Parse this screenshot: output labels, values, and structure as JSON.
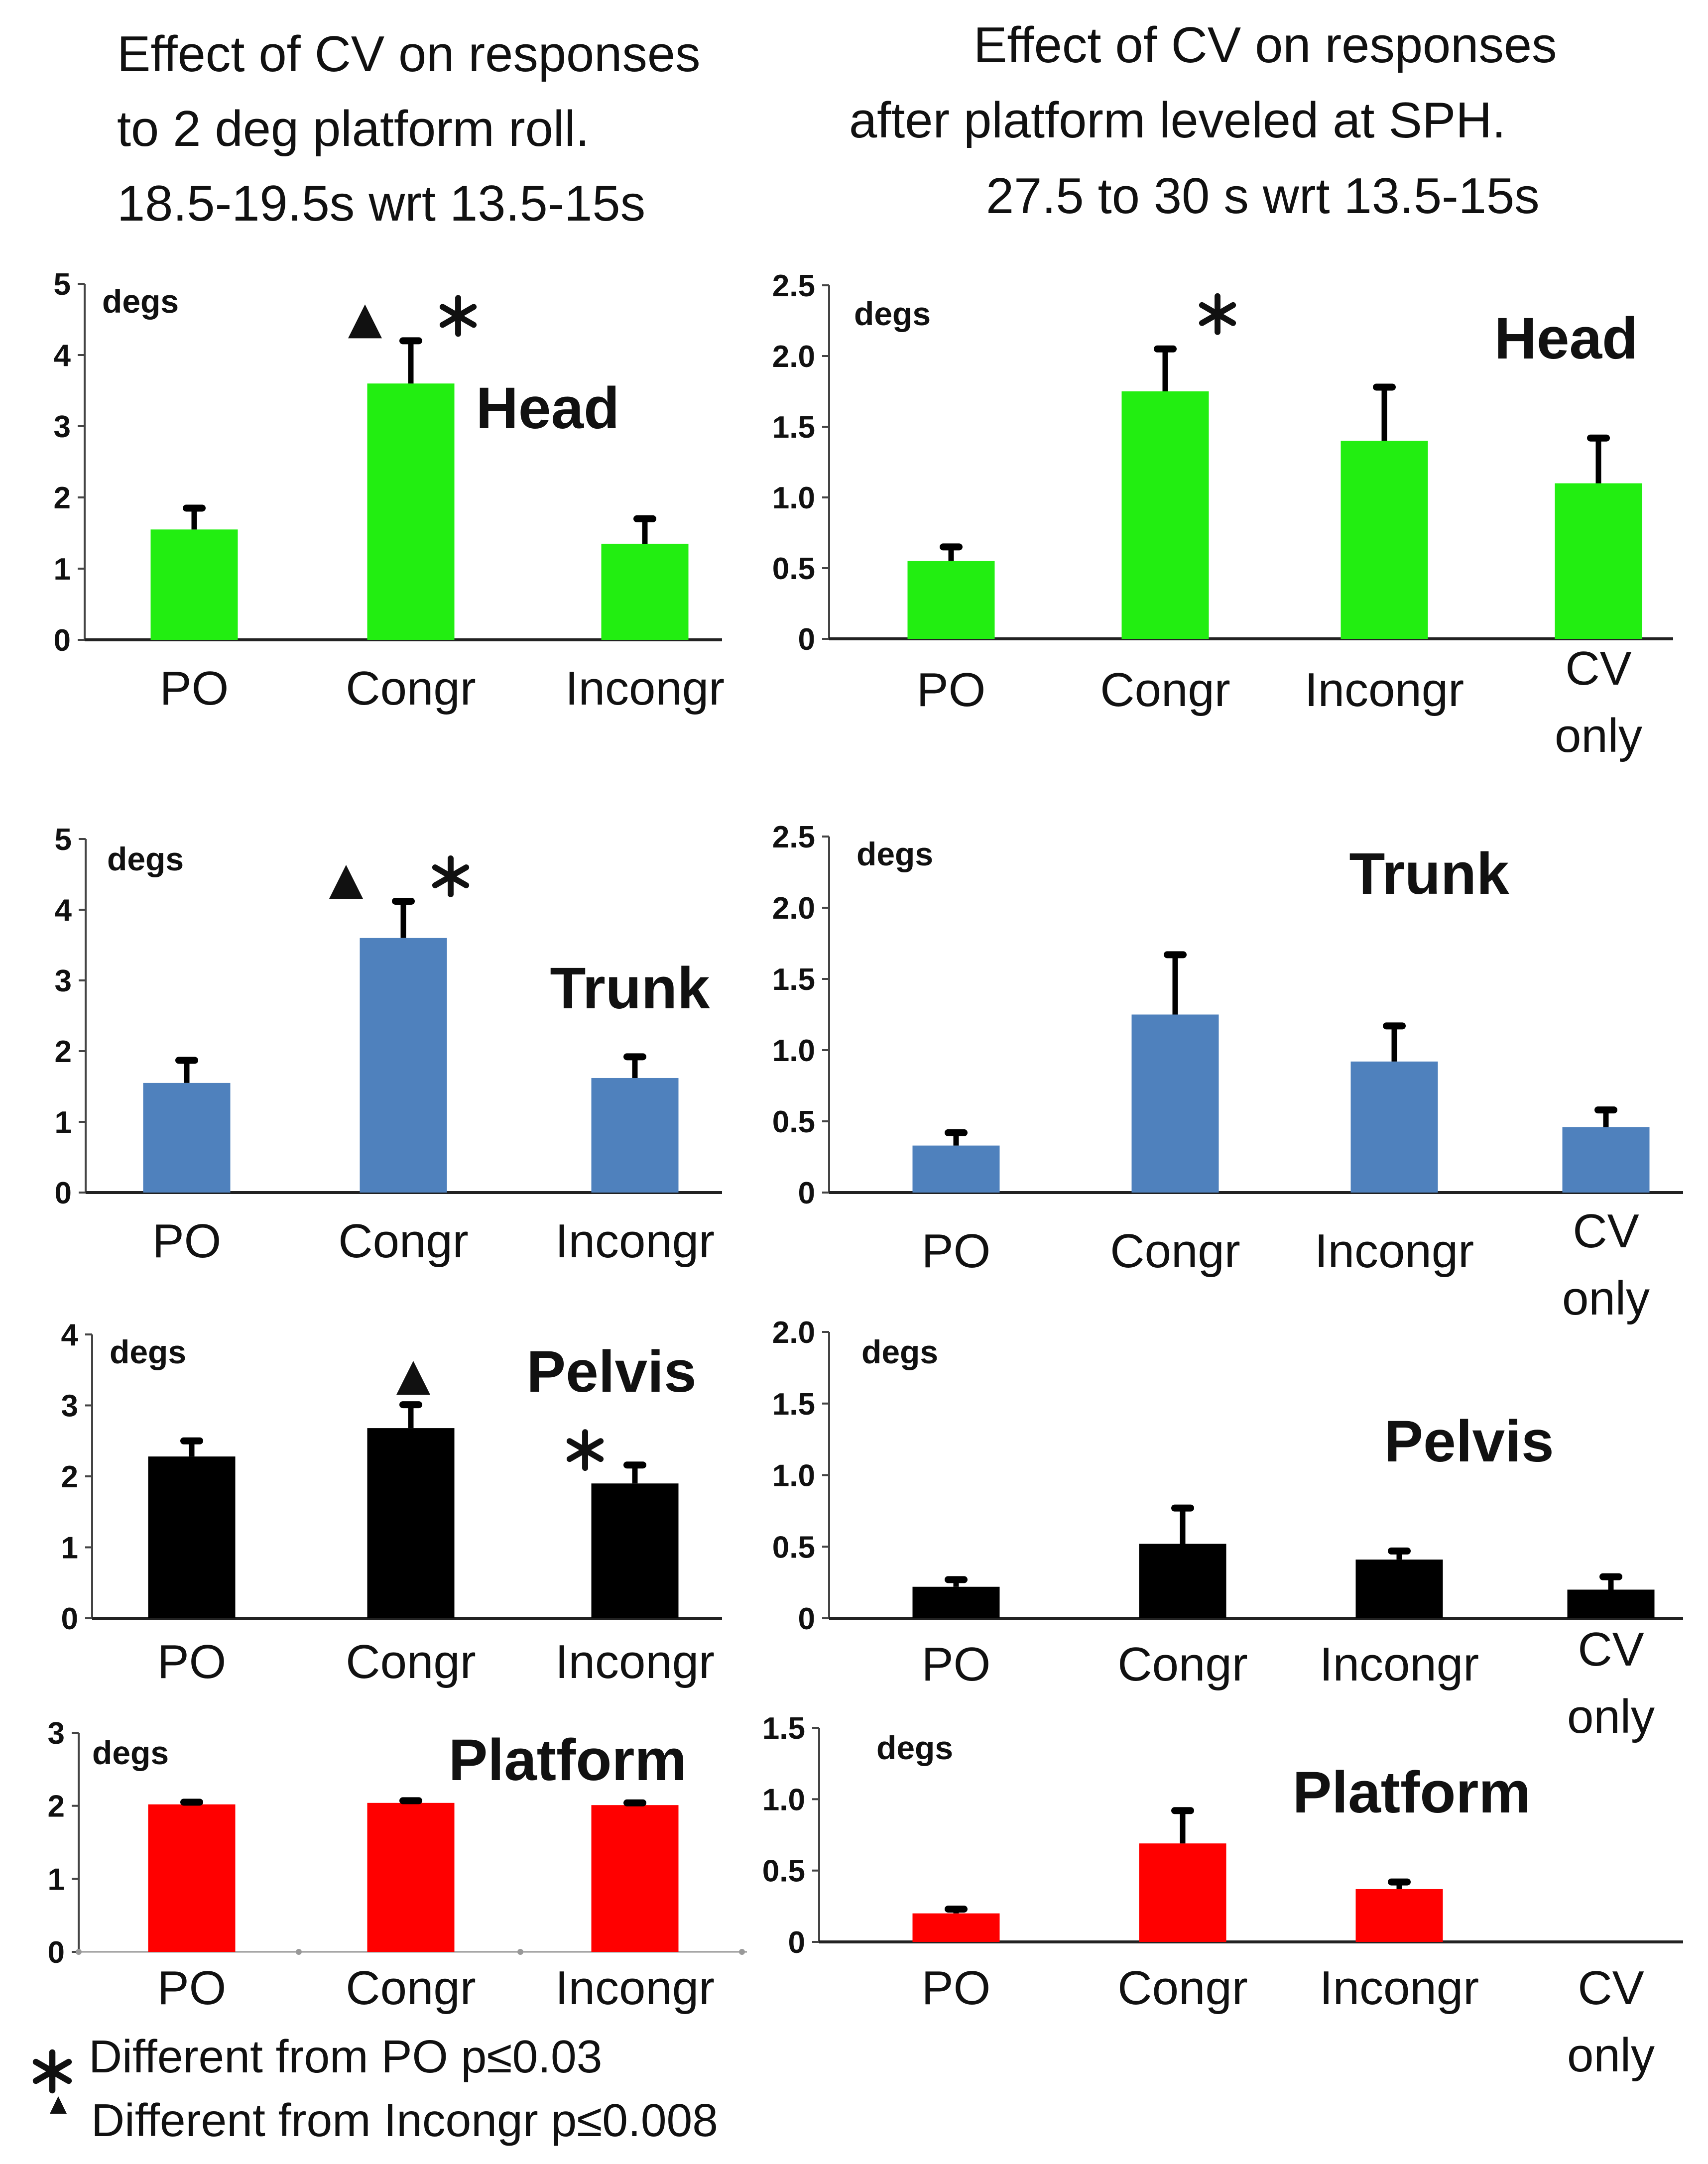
{
  "figure": {
    "left_title": [
      "Effect of CV on responses",
      "to  2 deg platform roll.",
      "18.5-19.5s wrt 13.5-15s"
    ],
    "right_title": [
      "Effect of CV on responses",
      "after platform leveled at  SPH.",
      "27.5 to 30 s wrt 13.5-15s"
    ],
    "legend": [
      {
        "marker": "asterisk-icon",
        "label": "Different  from PO p≤0.03"
      },
      {
        "marker": "triangle-icon",
        "label": "Different  from Incongr p≤0.008"
      }
    ]
  },
  "chart_data": [
    {
      "id": "left-head",
      "type": "bar",
      "title": "Head",
      "ylabel": "degs",
      "ylim": [
        0,
        5
      ],
      "yticks": [
        "0",
        "1",
        "2",
        "3",
        "4",
        "5"
      ],
      "categories": [
        "PO",
        "Congr",
        "Incongr"
      ],
      "values": [
        1.55,
        3.6,
        1.35
      ],
      "errors": [
        0.3,
        0.6,
        0.35
      ],
      "color": "#22ee11",
      "markers": [
        {
          "category": "Congr",
          "symbols": [
            "triangle",
            "asterisk"
          ]
        }
      ]
    },
    {
      "id": "right-head",
      "type": "bar",
      "title": "Head",
      "ylabel": "degs",
      "ylim": [
        0,
        2.5
      ],
      "yticks": [
        "0",
        "0.5",
        "1.0",
        "1.5",
        "2.0",
        "2.5"
      ],
      "categories": [
        "PO",
        "Congr",
        "Incongr",
        "CV only"
      ],
      "values": [
        0.55,
        1.75,
        1.4,
        1.1
      ],
      "errors": [
        0.1,
        0.3,
        0.38,
        0.32
      ],
      "color": "#22ee11",
      "markers": [
        {
          "category": "Congr",
          "symbols": [
            "asterisk"
          ]
        }
      ]
    },
    {
      "id": "left-trunk",
      "type": "bar",
      "title": "Trunk",
      "ylabel": "degs",
      "ylim": [
        0,
        5
      ],
      "yticks": [
        "0",
        "1",
        "2",
        "3",
        "4",
        "5"
      ],
      "categories": [
        "PO",
        "Congr",
        "Incongr"
      ],
      "values": [
        1.55,
        3.6,
        1.62
      ],
      "errors": [
        0.32,
        0.52,
        0.3
      ],
      "color": "#4f81bd",
      "markers": [
        {
          "category": "Congr",
          "symbols": [
            "triangle",
            "asterisk"
          ]
        }
      ]
    },
    {
      "id": "right-trunk",
      "type": "bar",
      "title": "Trunk",
      "ylabel": "degs",
      "ylim": [
        0,
        2.5
      ],
      "yticks": [
        "0",
        "0.5",
        "1.0",
        "1.5",
        "2.0",
        "2.5"
      ],
      "categories": [
        "PO",
        "Congr",
        "Incongr",
        "CV only"
      ],
      "values": [
        0.33,
        1.25,
        0.92,
        0.46
      ],
      "errors": [
        0.09,
        0.42,
        0.25,
        0.12
      ],
      "color": "#4f81bd",
      "markers": []
    },
    {
      "id": "left-pelvis",
      "type": "bar",
      "title": "Pelvis",
      "ylabel": "degs",
      "ylim": [
        0,
        4
      ],
      "yticks": [
        "0",
        "1",
        "2",
        "3",
        "4"
      ],
      "categories": [
        "PO",
        "Congr",
        "Incongr"
      ],
      "values": [
        2.28,
        2.68,
        1.9
      ],
      "errors": [
        0.22,
        0.33,
        0.26
      ],
      "color": "#000000",
      "markers": [
        {
          "category": "Congr",
          "symbols": [
            "triangle"
          ]
        },
        {
          "category": "Incongr",
          "symbols": [
            "asterisk"
          ]
        }
      ]
    },
    {
      "id": "right-pelvis",
      "type": "bar",
      "title": "Pelvis",
      "ylabel": "degs",
      "ylim": [
        0,
        2.0
      ],
      "yticks": [
        "0",
        "0.5",
        "1.0",
        "1.5",
        "2.0"
      ],
      "categories": [
        "PO",
        "Congr",
        "Incongr",
        "CV only"
      ],
      "values": [
        0.22,
        0.52,
        0.41,
        0.2
      ],
      "errors": [
        0.05,
        0.25,
        0.06,
        0.09
      ],
      "color": "#000000",
      "markers": []
    },
    {
      "id": "left-platform",
      "type": "bar",
      "title": "Platform",
      "ylabel": "degs",
      "ylim": [
        0,
        3
      ],
      "yticks": [
        "0",
        "1",
        "2",
        "3"
      ],
      "categories": [
        "PO",
        "Congr",
        "Incongr"
      ],
      "values": [
        2.02,
        2.04,
        2.01
      ],
      "errors": [
        0.03,
        0.03,
        0.03
      ],
      "color": "#ff0000",
      "markers": []
    },
    {
      "id": "right-platform",
      "type": "bar",
      "title": "Platform",
      "ylabel": "degs",
      "ylim": [
        0,
        1.5
      ],
      "yticks": [
        "0",
        "0.5",
        "1.0",
        "1.5"
      ],
      "categories": [
        "PO",
        "Congr",
        "Incongr",
        "CV only"
      ],
      "values": [
        0.2,
        0.69,
        0.37,
        0
      ],
      "errors": [
        0.03,
        0.23,
        0.05,
        0
      ],
      "color": "#ff0000",
      "markers": []
    }
  ]
}
